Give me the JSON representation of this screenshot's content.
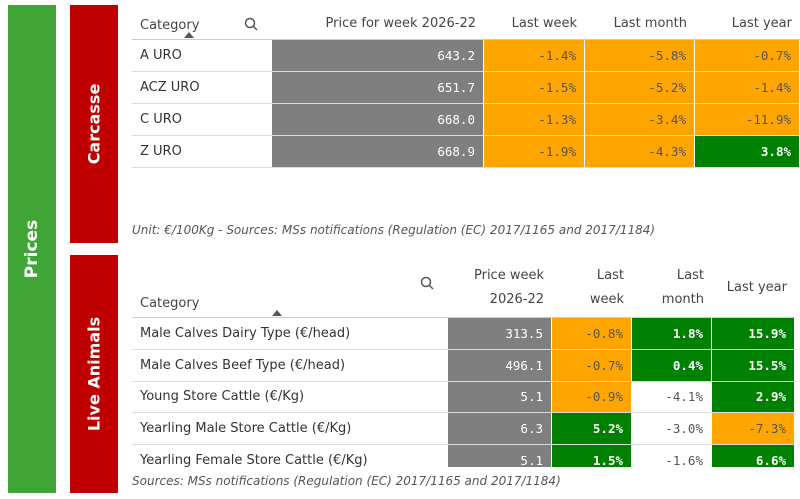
{
  "sidebar": {
    "label": "Prices"
  },
  "sections": [
    {
      "label": "Carcasse",
      "columns": [
        "Category",
        "Price for week 2026-22",
        "Last week",
        "Last month",
        "Last year"
      ],
      "rows": [
        {
          "cells": [
            "A URO",
            "643.2",
            "-1.4%",
            "-5.8%",
            "-0.7%"
          ],
          "colors": [
            "gray",
            "orange",
            "orange",
            "orange"
          ]
        },
        {
          "cells": [
            "ACZ URO",
            "651.7",
            "-1.5%",
            "-5.2%",
            "-1.4%"
          ],
          "colors": [
            "gray",
            "orange",
            "orange",
            "orange"
          ]
        },
        {
          "cells": [
            "C URO",
            "668.0",
            "-1.3%",
            "-3.4%",
            "-11.9%"
          ],
          "colors": [
            "gray",
            "orange",
            "orange",
            "orange"
          ]
        },
        {
          "cells": [
            "Z URO",
            "668.9",
            "-1.9%",
            "-4.3%",
            "3.8%"
          ],
          "colors": [
            "gray",
            "orange",
            "orange",
            "green"
          ]
        }
      ],
      "note": "Unit: €/100Kg - Sources: MSs notifications (Regulation (EC) 2017/1165 and 2017/1184)"
    },
    {
      "label": "Live Animals",
      "columns": [
        "Category",
        "Price week 2026-22",
        "Last week",
        "Last month",
        "Last year"
      ],
      "rows": [
        {
          "cells": [
            "Male Calves Dairy Type (€/head)",
            "313.5",
            "-0.8%",
            "1.8%",
            "15.9%"
          ],
          "colors": [
            "gray",
            "orange",
            "green",
            "green"
          ]
        },
        {
          "cells": [
            "Male Calves Beef Type (€/head)",
            "496.1",
            "-0.7%",
            "0.4%",
            "15.5%"
          ],
          "colors": [
            "gray",
            "orange",
            "green",
            "green"
          ]
        },
        {
          "cells": [
            "Young Store Cattle (€/Kg)",
            "5.1",
            "-0.9%",
            "-4.1%",
            "2.9%"
          ],
          "colors": [
            "gray",
            "orange",
            "white",
            "green"
          ]
        },
        {
          "cells": [
            "Yearling Male Store Cattle (€/Kg)",
            "6.3",
            "5.2%",
            "-3.0%",
            "-7.3%"
          ],
          "colors": [
            "gray",
            "green",
            "white",
            "orange"
          ]
        },
        {
          "cells": [
            "Yearling Female Store Cattle (€/Kg)",
            "5.1",
            "1.5%",
            "-1.6%",
            "6.6%"
          ],
          "colors": [
            "gray",
            "green",
            "white",
            "green"
          ]
        }
      ],
      "note": "Sources: MSs notifications (Regulation (EC) 2017/1165 and 2017/1184)"
    }
  ]
}
